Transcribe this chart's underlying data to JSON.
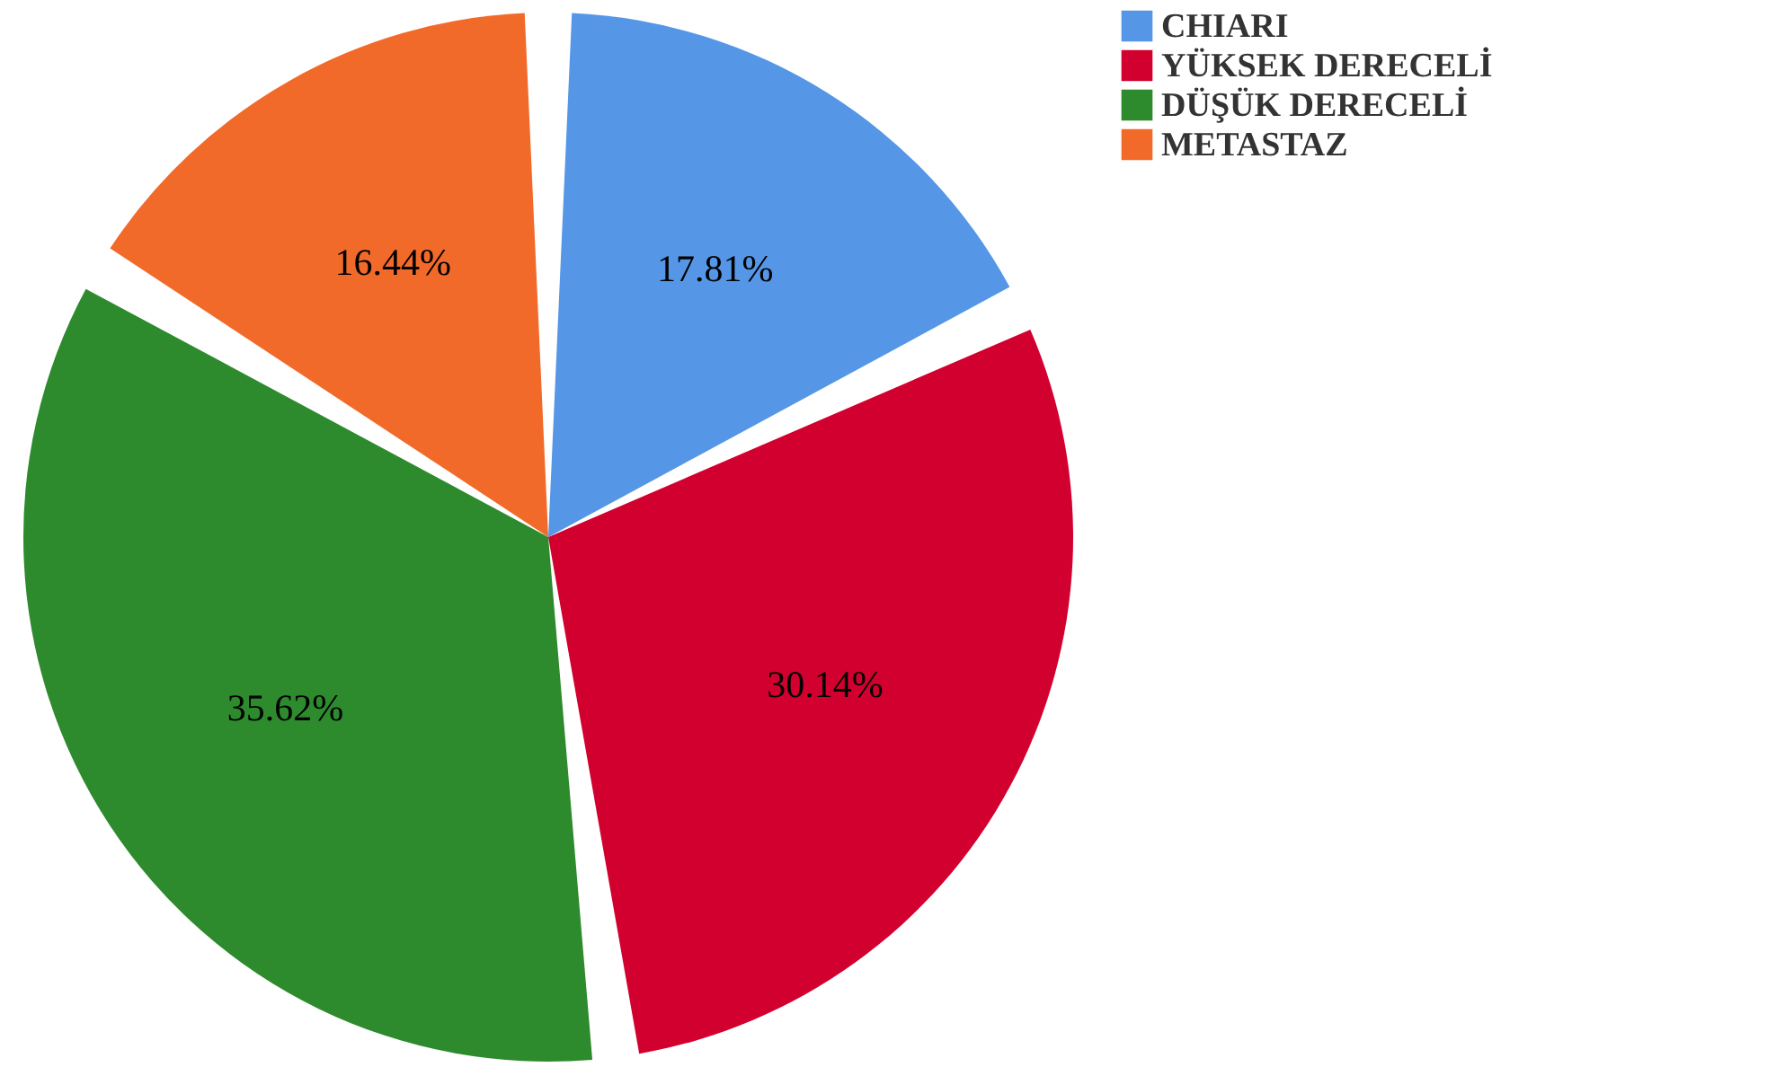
{
  "chart_data": {
    "type": "pie",
    "categories": [
      "CHIARI",
      "YÜKSEK DERECELİ",
      "DÜŞÜK DERECELİ",
      "METASTAZ"
    ],
    "values": [
      17.81,
      30.14,
      35.62,
      16.44
    ],
    "colors": [
      "#5596e6",
      "#d2002f",
      "#2d8a2d",
      "#f26a2a"
    ],
    "value_labels": [
      "17.81%",
      "30.14%",
      "35.62%",
      "16.44%"
    ],
    "legend": "top right"
  }
}
